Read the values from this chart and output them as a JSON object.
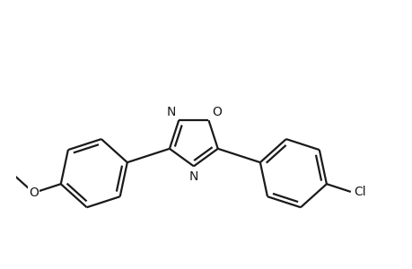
{
  "background_color": "#ffffff",
  "line_color": "#1a1a1a",
  "line_width": 1.6,
  "font_size": 10,
  "figsize": [
    4.6,
    3.0
  ],
  "dpi": 100,
  "xlim": [
    -2.8,
    3.2
  ],
  "ylim": [
    -2.0,
    2.2
  ]
}
